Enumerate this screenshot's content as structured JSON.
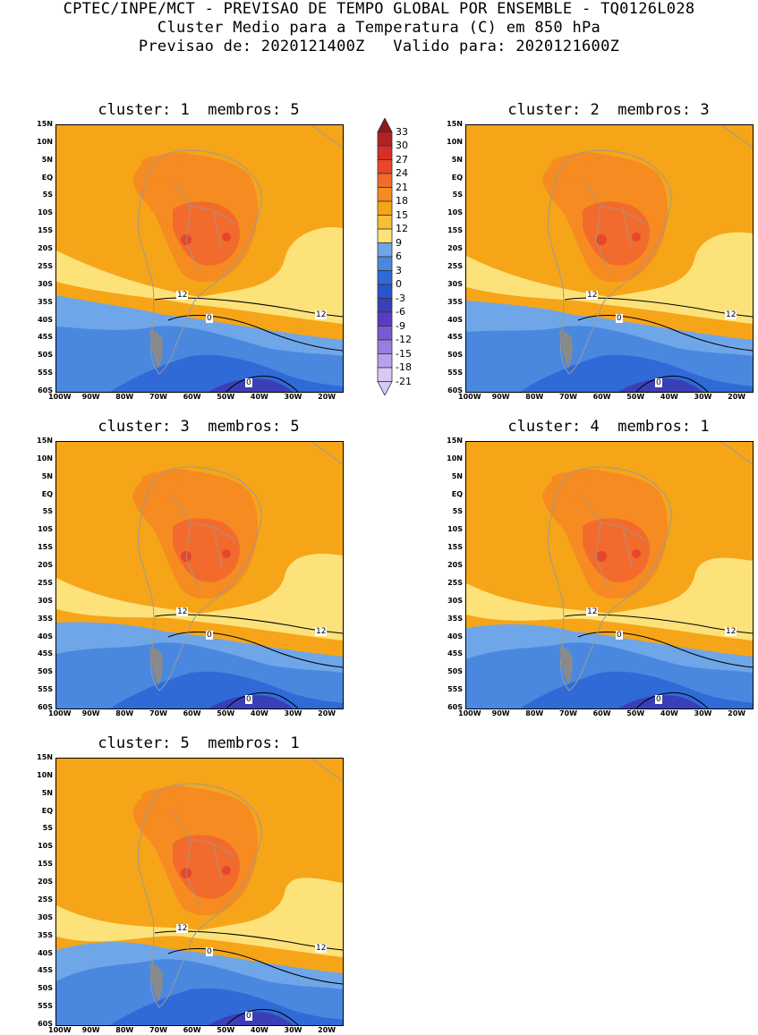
{
  "header": {
    "line1": "CPTEC/INPE/MCT - PREVISAO DE TEMPO GLOBAL POR ENSEMBLE - TQ0126L028",
    "line2": "Cluster Medio para a Temperatura (C) em 850 hPa",
    "line3": "Previsao de: 2020121400Z   Valido para: 2020121600Z"
  },
  "lat_labels": [
    "15N",
    "10N",
    "5N",
    "EQ",
    "5S",
    "10S",
    "15S",
    "20S",
    "25S",
    "30S",
    "35S",
    "40S",
    "45S",
    "50S",
    "55S",
    "60S"
  ],
  "lon_labels": [
    "100W",
    "90W",
    "80W",
    "70W",
    "60W",
    "50W",
    "40W",
    "30W",
    "20W"
  ],
  "colorbar": {
    "levels": [
      "33",
      "30",
      "27",
      "24",
      "21",
      "18",
      "15",
      "12",
      "9",
      "6",
      "3",
      "0",
      "-3",
      "-6",
      "-9",
      "-12",
      "-15",
      "-18",
      "-21"
    ],
    "colors": [
      "#8b1a1a",
      "#b22222",
      "#d62f26",
      "#e8462a",
      "#f26b2c",
      "#f68b22",
      "#f6a519",
      "#f7be3a",
      "#fde27a",
      "#6fa6e8",
      "#4a88e0",
      "#2f6ad6",
      "#2856cc",
      "#3a3fb8",
      "#5a3cc4",
      "#7a5ad2",
      "#9a7ee0",
      "#b9a2ea",
      "#d8c8f4"
    ]
  },
  "contour_labels": {
    "twelve": "12",
    "zero": "0"
  },
  "panels": [
    {
      "title": "cluster: 1  membros: 5"
    },
    {
      "title": "cluster: 2  membros: 3"
    },
    {
      "title": "cluster: 3  membros: 5"
    },
    {
      "title": "cluster: 4  membros: 1"
    },
    {
      "title": "cluster: 5  membros: 1"
    }
  ]
}
